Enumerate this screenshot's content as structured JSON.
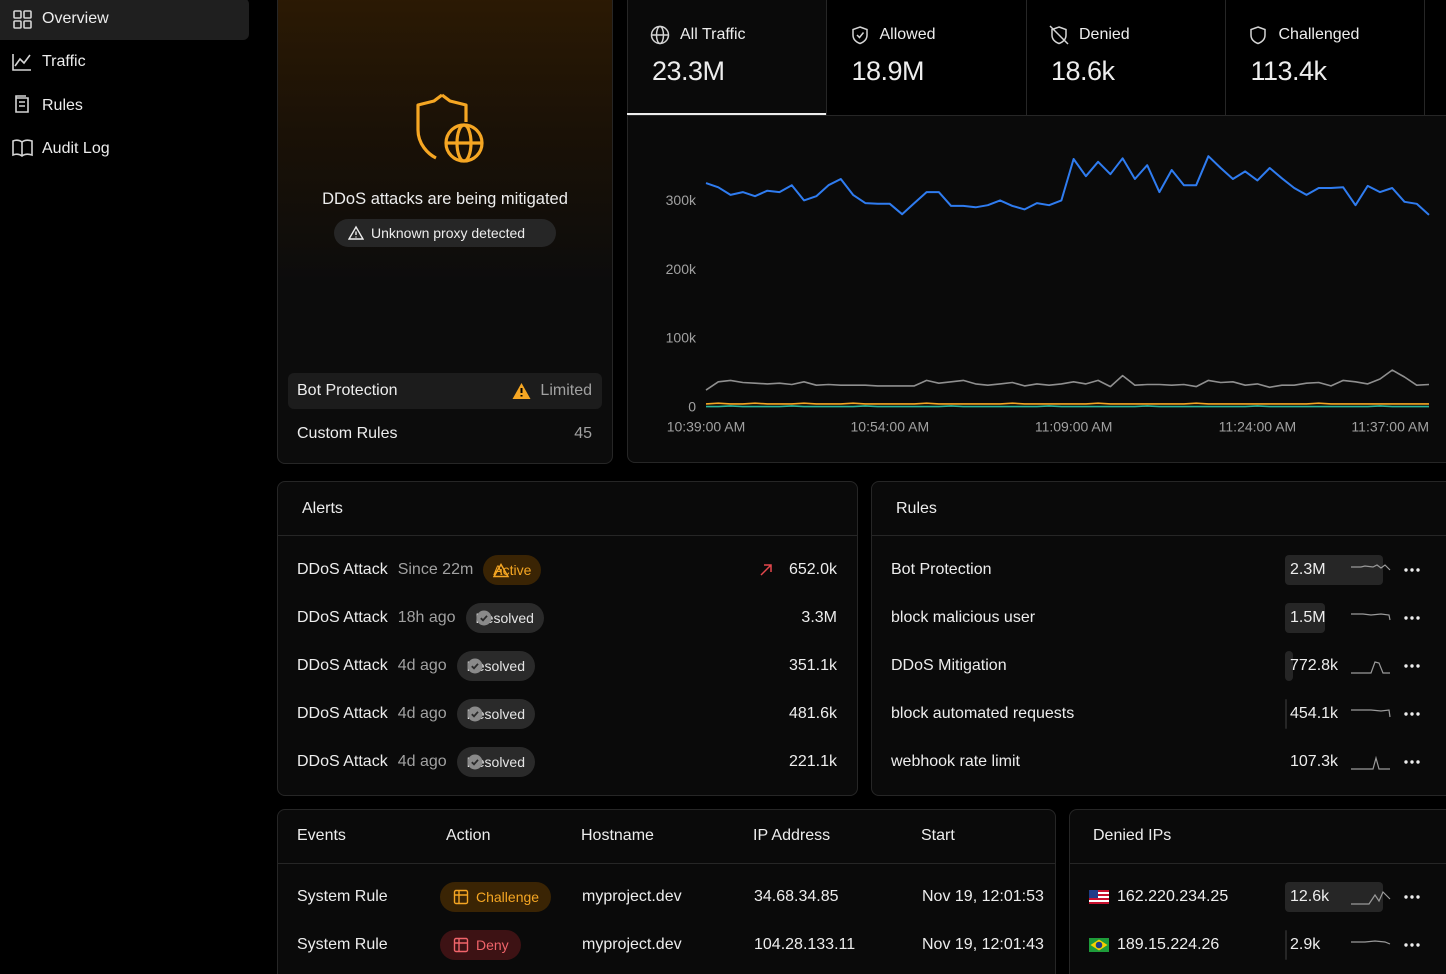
{
  "sidebar": {
    "items": [
      "Overview",
      "Traffic",
      "Rules",
      "Audit Log"
    ]
  },
  "status": {
    "title": "DDoS attacks are being mitigated",
    "badge": "Unknown proxy detected",
    "rows": [
      {
        "label": "Bot Protection",
        "value": "Limited"
      },
      {
        "label": "Custom Rules",
        "value": "45"
      }
    ]
  },
  "traffic": {
    "tabs": [
      {
        "label": "All Traffic",
        "value": "23.3M"
      },
      {
        "label": "Allowed",
        "value": "18.9M"
      },
      {
        "label": "Denied",
        "value": "18.6k"
      },
      {
        "label": "Challenged",
        "value": "113.4k"
      }
    ]
  },
  "chart_data": {
    "type": "line",
    "categories": [
      "10:39:00 AM",
      null,
      null,
      null,
      null,
      null,
      null,
      null,
      null,
      null,
      null,
      null,
      null,
      null,
      null,
      "10:54:00 AM",
      null,
      null,
      null,
      null,
      null,
      null,
      null,
      null,
      null,
      null,
      null,
      null,
      null,
      null,
      "11:09:00 AM",
      null,
      null,
      null,
      null,
      null,
      null,
      null,
      null,
      null,
      null,
      null,
      null,
      null,
      null,
      "11:24:00 AM",
      null,
      null,
      null,
      null,
      null,
      null,
      null,
      null,
      null,
      null,
      null,
      null,
      "11:37:00 AM",
      null
    ],
    "ylim": [
      0,
      390000
    ],
    "yticks": [
      0,
      {
        "value": 100000,
        "label": "100k"
      },
      {
        "value": 200000,
        "label": "200k"
      },
      {
        "value": 300000,
        "label": "300k"
      }
    ],
    "grid": false,
    "series": [
      {
        "color": "#2f7cf0",
        "values": [
          326000,
          320000,
          309000,
          313000,
          307000,
          315000,
          313000,
          323000,
          301000,
          307000,
          323000,
          332000,
          309000,
          297000,
          296000,
          296000,
          281000,
          297000,
          313000,
          313000,
          293000,
          293000,
          291000,
          294000,
          301000,
          293000,
          288000,
          297000,
          294000,
          301000,
          361000,
          336000,
          357000,
          339000,
          362000,
          332000,
          352000,
          313000,
          345000,
          323000,
          323000,
          365000,
          348000,
          332000,
          343000,
          330000,
          348000,
          333000,
          319000,
          309000,
          319000,
          319000,
          320000,
          294000,
          322000,
          313000,
          319000,
          299000,
          296000,
          280000
        ]
      },
      {
        "color": "#8f8f8f",
        "values": [
          26000,
          38000,
          40000,
          37000,
          36000,
          35000,
          36000,
          34000,
          38000,
          33000,
          34000,
          33000,
          33000,
          33000,
          32000,
          32000,
          32000,
          32000,
          40000,
          36000,
          38000,
          40000,
          35000,
          33000,
          35000,
          37000,
          32000,
          35000,
          33000,
          35000,
          38000,
          35000,
          40000,
          31000,
          47000,
          33000,
          34000,
          34000,
          33000,
          34000,
          31000,
          40000,
          37000,
          38000,
          33000,
          35000,
          30000,
          33000,
          33000,
          36000,
          37000,
          32000,
          40000,
          38000,
          35000,
          42000,
          55000,
          45000,
          33000,
          34000
        ]
      },
      {
        "color": "#f5a623",
        "values": [
          6000,
          7000,
          6000,
          6000,
          7000,
          6000,
          6000,
          6000,
          7000,
          6000,
          6000,
          6000,
          7000,
          6000,
          6000,
          6000,
          6000,
          6000,
          7000,
          6000,
          6000,
          6000,
          6000,
          6000,
          6000,
          7000,
          6000,
          6000,
          6000,
          6000,
          6000,
          6000,
          7000,
          6000,
          6000,
          6000,
          6000,
          6000,
          6000,
          6000,
          7000,
          6000,
          6000,
          6000,
          6000,
          6000,
          6000,
          6000,
          6000,
          6000,
          7000,
          6000,
          6000,
          6000,
          6000,
          6000,
          6000,
          6000,
          6000,
          6000
        ]
      },
      {
        "color": "#2bb59a",
        "values": [
          2000,
          2000,
          3000,
          2000,
          2000,
          2000,
          2000,
          3000,
          2000,
          2000,
          2000,
          2000,
          2000,
          3000,
          2000,
          2000,
          2000,
          2000,
          2000,
          2000,
          3000,
          2000,
          2000,
          2000,
          2000,
          2000,
          2000,
          2000,
          3000,
          2000,
          2000,
          2000,
          2000,
          2000,
          2000,
          2000,
          3000,
          2000,
          2000,
          2000,
          2000,
          2000,
          2000,
          2000,
          2000,
          3000,
          2000,
          2000,
          2000,
          2000,
          2000,
          2000,
          2000,
          2000,
          2000,
          3000,
          2000,
          2000,
          2000,
          2000
        ]
      }
    ]
  },
  "alerts": {
    "title": "Alerts",
    "rows": [
      {
        "name": "DDoS Attack",
        "time": "Since 22m",
        "status": "Active",
        "value": "652.0k"
      },
      {
        "name": "DDoS Attack",
        "time": "18h ago",
        "status": "Resolved",
        "value": "3.3M"
      },
      {
        "name": "DDoS Attack",
        "time": "4d ago",
        "status": "Resolved",
        "value": "351.1k"
      },
      {
        "name": "DDoS Attack",
        "time": "4d ago",
        "status": "Resolved",
        "value": "481.6k"
      },
      {
        "name": "DDoS Attack",
        "time": "4d ago",
        "status": "Resolved",
        "value": "221.1k"
      }
    ]
  },
  "rules": {
    "title": "Rules",
    "rows": [
      {
        "name": "Bot Protection",
        "value": "2.3M"
      },
      {
        "name": "block malicious user",
        "value": "1.5M"
      },
      {
        "name": "DDoS Mitigation",
        "value": "772.8k"
      },
      {
        "name": "block automated requests",
        "value": "454.1k"
      },
      {
        "name": "webhook rate limit",
        "value": "107.3k"
      }
    ]
  },
  "events": {
    "columns": [
      "Events",
      "Action",
      "Hostname",
      "IP Address",
      "Start"
    ],
    "rows": [
      [
        "System Rule",
        "Challenge",
        "myproject.dev",
        "34.68.34.85",
        "Nov 19, 12:01:53"
      ],
      [
        "System Rule",
        "Deny",
        "myproject.dev",
        "104.28.133.11",
        "Nov 19, 12:01:43"
      ]
    ]
  },
  "denied_ips": {
    "title": "Denied IPs",
    "rows": [
      {
        "ip": "162.220.234.25",
        "value": "12.6k"
      },
      {
        "ip": "189.15.224.26",
        "value": "2.9k"
      }
    ]
  }
}
